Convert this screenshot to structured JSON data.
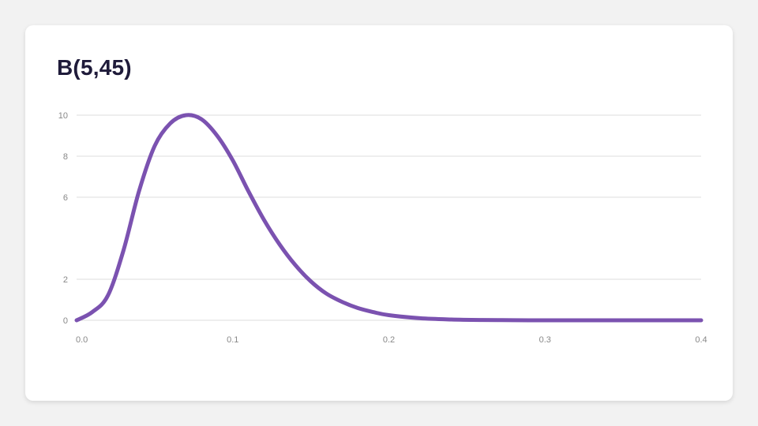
{
  "chart_data": {
    "type": "line",
    "title": "B(5,45)",
    "xlabel": "",
    "ylabel": "",
    "xlim": [
      0.0,
      0.4
    ],
    "ylim": [
      0,
      10
    ],
    "x_ticks": [
      "0.0",
      "0.1",
      "0.2",
      "0.3",
      "0.4"
    ],
    "y_ticks": [
      "0",
      "2",
      "6",
      "8",
      "10"
    ],
    "y_tick_values": [
      0,
      2,
      6,
      8,
      10
    ],
    "grid": "horizontal",
    "legend": "none",
    "colors": {
      "line": "#7b52b0",
      "grid": "#dddddd",
      "axis_text": "#888888",
      "title": "#1f1b3a"
    },
    "series": [
      {
        "x": [
          0.0,
          0.01,
          0.02,
          0.03,
          0.04,
          0.05,
          0.06,
          0.07,
          0.08,
          0.09,
          0.1,
          0.11,
          0.12,
          0.13,
          0.14,
          0.15,
          0.16,
          0.17,
          0.18,
          0.19,
          0.2,
          0.22,
          0.24,
          0.26,
          0.28,
          0.3,
          0.32,
          0.34,
          0.36,
          0.38,
          0.4
        ],
        "y": [
          0.0,
          0.4,
          1.2,
          3.4,
          6.3,
          8.5,
          9.6,
          10.0,
          9.8,
          9.0,
          7.8,
          6.3,
          4.9,
          3.7,
          2.7,
          1.9,
          1.3,
          0.9,
          0.6,
          0.4,
          0.25,
          0.1,
          0.04,
          0.015,
          0.005,
          0.0,
          0.0,
          0.0,
          0.0,
          0.0,
          0.0
        ]
      }
    ]
  }
}
